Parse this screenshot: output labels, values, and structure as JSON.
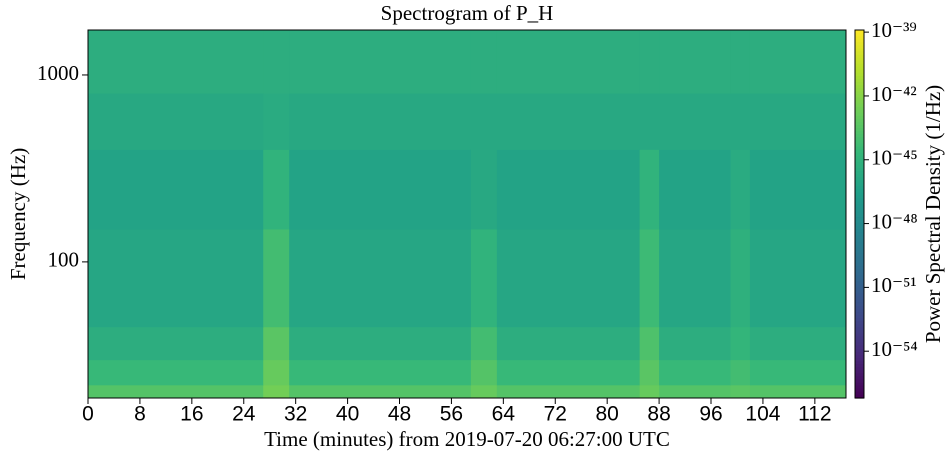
{
  "chart_data": {
    "type": "heatmap",
    "title": "Spectrogram of P_H",
    "x_label": "Time (minutes) from 2019-07-20 06:27:00 UTC",
    "y_label": "Frequency (Hz)",
    "colorbar_label": "Power Spectral Density (1/Hz)",
    "colormap": "viridis",
    "y_log": true,
    "x_edges": [
      0,
      27,
      31,
      59,
      63,
      85,
      88,
      99,
      102,
      116.8
    ],
    "y_edges": [
      18.7,
      22,
      30,
      45,
      150,
      400,
      800,
      1740
    ],
    "values": [
      [
        -43.6,
        -42.6,
        -43.6,
        -43.0,
        -43.6,
        -43.0,
        -43.6,
        -43.4,
        -43.6
      ],
      [
        -44.6,
        -43.0,
        -44.6,
        -43.6,
        -44.6,
        -43.4,
        -44.6,
        -44.2,
        -44.6
      ],
      [
        -45.4,
        -43.4,
        -45.4,
        -44.2,
        -45.4,
        -43.8,
        -45.4,
        -44.8,
        -45.4
      ],
      [
        -46.0,
        -44.2,
        -46.0,
        -45.0,
        -46.0,
        -44.4,
        -46.0,
        -45.2,
        -46.0
      ],
      [
        -46.2,
        -45.0,
        -46.2,
        -45.8,
        -46.2,
        -45.0,
        -46.2,
        -45.6,
        -46.2
      ],
      [
        -45.8,
        -45.6,
        -45.8,
        -45.8,
        -45.8,
        -45.8,
        -45.8,
        -45.8,
        -45.8
      ],
      [
        -45.4,
        -45.4,
        -45.4,
        -45.4,
        -45.4,
        -45.4,
        -45.4,
        -45.4,
        -45.4
      ]
    ],
    "xlim": [
      0,
      116.8
    ],
    "xticks": [
      0,
      8,
      16,
      24,
      32,
      40,
      48,
      56,
      64,
      72,
      80,
      88,
      96,
      104,
      112
    ],
    "ylim": [
      18.7,
      1740
    ],
    "yticks": [
      100,
      1000
    ],
    "zlim": [
      -56.2,
      -38.9
    ],
    "zticks": [
      {
        "value": -54,
        "label": "10⁻⁵⁴"
      },
      {
        "value": -51,
        "label": "10⁻⁵¹"
      },
      {
        "value": -48,
        "label": "10⁻⁴⁸"
      },
      {
        "value": -45,
        "label": "10⁻⁴⁵"
      },
      {
        "value": -42,
        "label": "10⁻⁴²"
      },
      {
        "value": -39,
        "label": "10⁻³⁹"
      }
    ]
  }
}
